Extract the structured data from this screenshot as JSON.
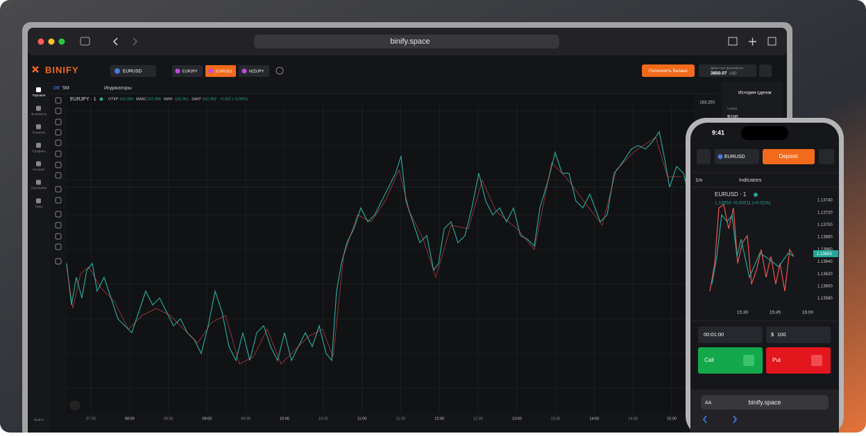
{
  "browser": {
    "url": "binify.space"
  },
  "app": {
    "logo": "BINIFY",
    "pair": "EURUSD",
    "tabs": [
      "EURJPY",
      "EURUSD",
      "NZDJPY"
    ],
    "deposit_button": "Пополнить баланс",
    "account": {
      "label": "Демо-счет фьючерсов",
      "balance": "3850.07",
      "currency": "USD"
    }
  },
  "sidebar": {
    "items": [
      "Торговля",
      "Фьючерсы",
      "Кошелек",
      "Профиль",
      "История",
      "Настройки",
      "Темы"
    ],
    "exit": "Выйти"
  },
  "toolbar": {
    "intervals": [
      "1M",
      "5M"
    ],
    "indicators": "Индикаторы"
  },
  "chart": {
    "symbol": "EURJPY · 1",
    "ohlc": [
      {
        "label": "ОТКР",
        "value": "162.990"
      },
      {
        "label": "МАКС",
        "value": "162.996"
      },
      {
        "label": "МИН",
        "value": "162.961"
      },
      {
        "label": "ЗАКР",
        "value": "162.992"
      }
    ],
    "change": "−0.002 (−0.00%)",
    "price_label": "163.250",
    "x_labels": [
      "07:30",
      "08:00",
      "08:30",
      "09:00",
      "09:30",
      "10:00",
      "10:30",
      "11:00",
      "11:30",
      "12:00",
      "12:30",
      "13:00",
      "13:30",
      "14:00",
      "14:30",
      "15:00"
    ]
  },
  "right_panel": {
    "title": "История сделок",
    "amount_label": "Сумма",
    "amount": "$100"
  },
  "phone": {
    "time": "9:41",
    "pair": "EURUSD",
    "deposit": "Deposit",
    "interval": "1m",
    "indicators": "Indicators",
    "symbol": "EURUSD · 1",
    "change": "1.13653 +0.00011 (+0.01%)",
    "prices": [
      "1.13740",
      "1.13720",
      "1.13700",
      "1.13680",
      "1.13660",
      "1.13640",
      "1.13620",
      "1.13600",
      "1.13580"
    ],
    "current": "1.13653",
    "times": [
      "15:30",
      "15:45",
      "16:00"
    ],
    "timer": "00:01:00",
    "currency": "$",
    "amount": "100",
    "call": "Call",
    "put": "Put",
    "text_size": "AA",
    "url": "binify.space"
  }
}
